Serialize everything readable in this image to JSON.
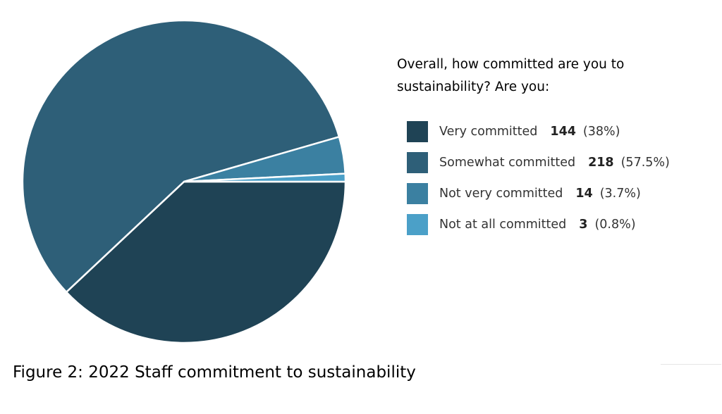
{
  "chart_data": {
    "type": "pie",
    "title": "Overall, how committed are you to sustainability? Are you:",
    "legend_position": "right",
    "categories": [
      "Very committed",
      "Somewhat committed",
      "Not very committed",
      "Not at all committed"
    ],
    "values": [
      144,
      218,
      14,
      3
    ],
    "percent_labels": [
      "(38%)",
      "(57.5%)",
      "(3.7%)",
      "(0.8%)"
    ],
    "colors": [
      "#1f4355",
      "#2e5f78",
      "#3b80a1",
      "#4ba0c8"
    ]
  },
  "question_line1": "Overall, how committed are you to",
  "question_line2": "sustainability? Are you:",
  "caption": "Figure 2: 2022 Staff commitment to sustainability"
}
